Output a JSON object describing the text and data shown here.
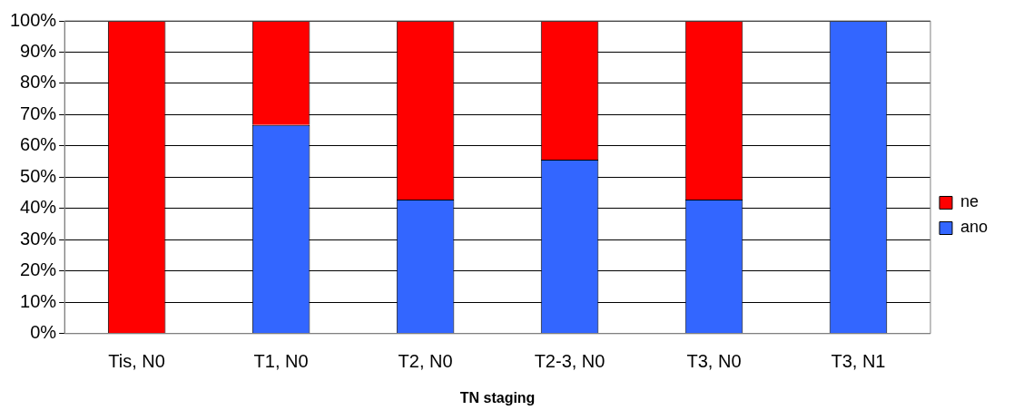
{
  "chart_data": {
    "type": "bar",
    "stacked": true,
    "xlabel": "TN staging",
    "categories": [
      "Tis, N0",
      "T1, N0",
      "T2, N0",
      "T2-3, N0",
      "T3, N0",
      "T3, N1"
    ],
    "series": [
      {
        "name": "ano",
        "color": "#3366ff",
        "values": [
          0,
          66.7,
          42.9,
          55.6,
          42.9,
          100
        ]
      },
      {
        "name": "ne",
        "color": "#ff0000",
        "values": [
          100,
          33.3,
          57.1,
          44.4,
          57.1,
          0
        ]
      }
    ],
    "ylim": [
      0,
      100
    ],
    "yticks": [
      {
        "value": 0,
        "label": "0%"
      },
      {
        "value": 10,
        "label": "10%"
      },
      {
        "value": 20,
        "label": "20%"
      },
      {
        "value": 30,
        "label": "30%"
      },
      {
        "value": 40,
        "label": "40%"
      },
      {
        "value": 50,
        "label": "50%"
      },
      {
        "value": 60,
        "label": "60%"
      },
      {
        "value": 70,
        "label": "70%"
      },
      {
        "value": 80,
        "label": "80%"
      },
      {
        "value": 90,
        "label": "90%"
      },
      {
        "value": 100,
        "label": "100%"
      }
    ],
    "grid": "y",
    "legend": "right"
  }
}
